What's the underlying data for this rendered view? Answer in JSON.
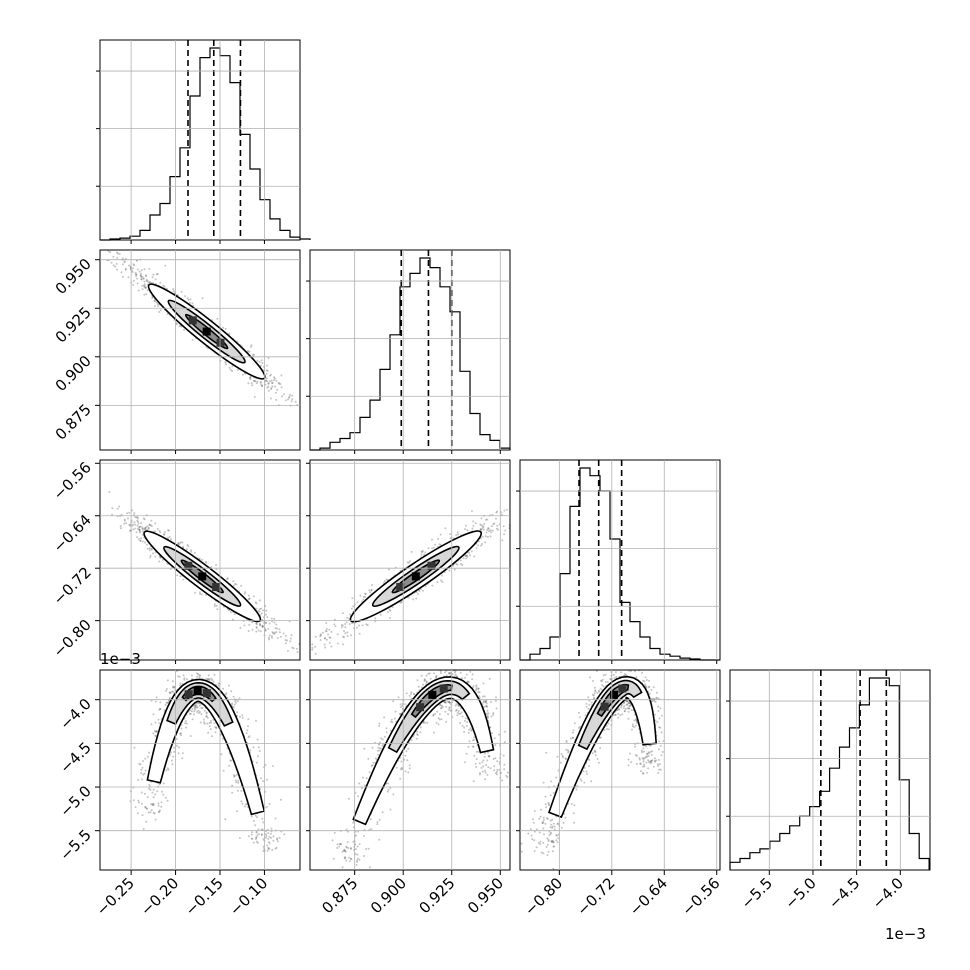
{
  "chart_data": {
    "type": "corner",
    "parameters": [
      {
        "index": 0,
        "range": [
          -0.285,
          -0.06
        ],
        "ticks": [
          -0.25,
          -0.2,
          -0.15,
          -0.1
        ],
        "tick_labels": [
          "−0.25",
          "−0.20",
          "−0.15",
          "−0.10"
        ],
        "quantiles": [
          -0.186,
          -0.157,
          -0.127
        ],
        "hist_x_start": -0.285,
        "hist_bin_width": 0.01125,
        "hist": [
          0,
          0.5,
          1,
          2,
          5,
          13,
          19,
          33,
          48,
          75,
          95,
          100,
          96,
          82,
          55,
          37,
          21,
          11,
          5,
          1.5,
          0.5
        ]
      },
      {
        "index": 1,
        "range": [
          0.852,
          0.955
        ],
        "ticks": [
          0.875,
          0.9,
          0.925,
          0.95
        ],
        "tick_labels": [
          "0.875",
          "0.900",
          "0.925",
          "0.950"
        ],
        "quantiles": [
          0.899,
          0.913,
          0.925
        ],
        "hist_x_start": 0.852,
        "hist_bin_width": 0.00515,
        "hist": [
          0,
          1,
          4,
          6,
          9,
          17,
          26,
          42,
          60,
          85,
          92,
          100,
          95,
          85,
          72,
          41,
          19,
          8,
          5,
          1
        ]
      },
      {
        "index": 2,
        "range": [
          -0.86,
          -0.555
        ],
        "ticks": [
          -0.8,
          -0.72,
          -0.64,
          -0.56
        ],
        "tick_labels": [
          "−0.80",
          "−0.72",
          "−0.64",
          "−0.56"
        ],
        "quantiles": [
          -0.77,
          -0.74,
          -0.705
        ],
        "hist_x_start": -0.86,
        "hist_bin_width": 0.01525,
        "hist": [
          0,
          3,
          6,
          12,
          45,
          80,
          100,
          96,
          88,
          63,
          30,
          20,
          12,
          6,
          3,
          2,
          1,
          0.5,
          0,
          0
        ]
      },
      {
        "index": 3,
        "range": [
          -0.00595,
          -0.00366
        ],
        "ticks": [
          -5.5,
          -5.0,
          -4.5,
          -4.0
        ],
        "tick_labels": [
          "−5.5",
          "−5.0",
          "−4.5",
          "−4.0"
        ],
        "scale_label": "1e−3",
        "quantiles": [
          -0.00491,
          -0.00446,
          -0.00416
        ],
        "hist_x_start": -0.00595,
        "hist_bin_width": 0.000114,
        "hist": [
          4,
          6,
          9,
          11,
          15,
          19,
          23,
          28,
          33,
          41,
          53,
          64,
          74,
          86,
          100,
          100,
          96,
          47,
          19,
          6
        ]
      }
    ],
    "correlations": {
      "0-1": {
        "shape": "line",
        "from": [
          -0.23,
          0.937
        ],
        "to": [
          -0.1,
          0.889
        ],
        "width_frac": 0.055
      },
      "0-2": {
        "shape": "line",
        "from": [
          -0.235,
          -0.665
        ],
        "to": [
          -0.105,
          -0.8
        ],
        "width_frac": 0.055
      },
      "1-2": {
        "shape": "line",
        "from": [
          0.873,
          -0.8
        ],
        "to": [
          0.94,
          -0.665
        ],
        "width_frac": 0.06
      },
      "0-3": {
        "shape": "arch",
        "left": [
          -0.23,
          -0.0052
        ],
        "peak": [
          -0.17,
          -0.0039
        ],
        "right": [
          -0.1,
          -0.0056
        ],
        "width_frac": 0.1
      },
      "1-3": {
        "shape": "arch",
        "left": [
          0.872,
          -0.0057
        ],
        "peak": [
          0.918,
          -0.0039
        ],
        "right": [
          0.945,
          -0.0048
        ],
        "width_frac": 0.1
      },
      "2-3": {
        "shape": "arch",
        "left": [
          -0.82,
          -0.0056
        ],
        "peak": [
          -0.71,
          -0.0039
        ],
        "right": [
          -0.66,
          -0.0047
        ],
        "width_frac": 0.1
      }
    },
    "grid": true
  }
}
